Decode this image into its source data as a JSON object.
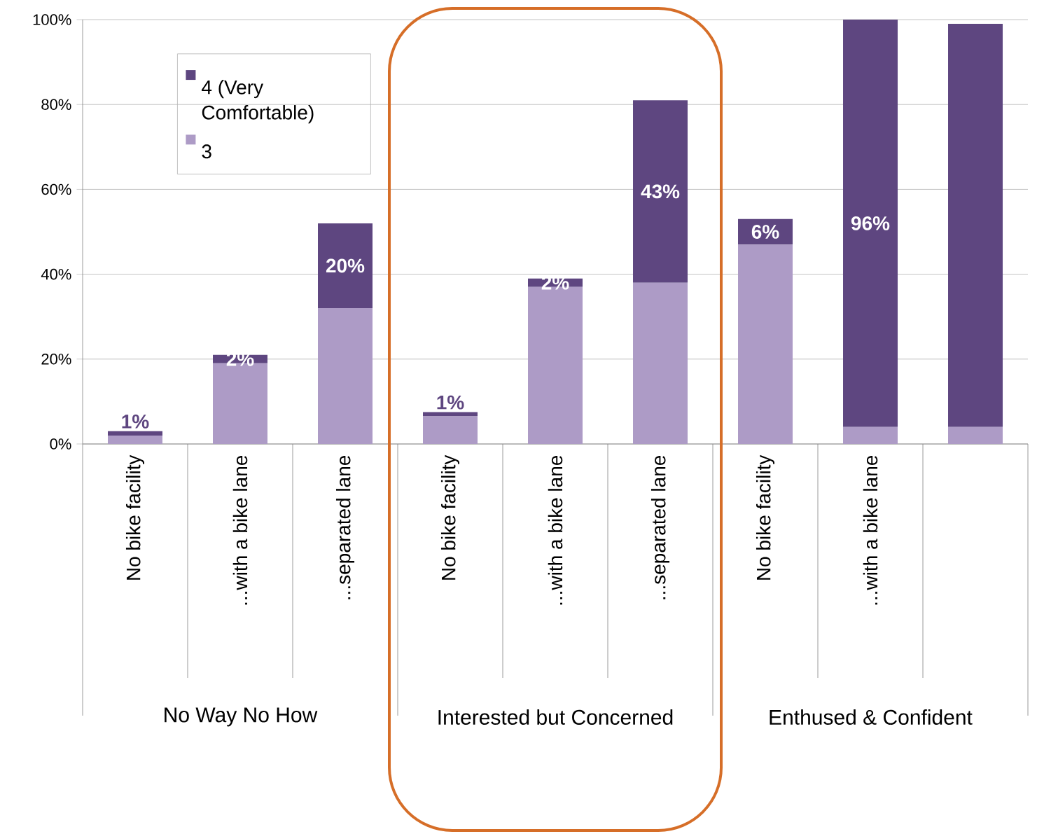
{
  "chart_data": {
    "type": "bar",
    "stacked": true,
    "categories": [
      "No bike facility",
      "...with a bike lane",
      "...separated lane",
      "No bike facility",
      "...with a bike lane",
      "...separated lane",
      "No bike facility",
      "...with a bike lane",
      null
    ],
    "series": [
      {
        "name": "3",
        "color": "#ad9bc6",
        "values": [
          2,
          19,
          32,
          6.5,
          37,
          38,
          47,
          4,
          4
        ]
      },
      {
        "name": "4 (Very Comfortable)",
        "color": "#5e4680",
        "values": [
          1,
          2,
          20,
          1,
          2,
          43,
          6,
          96,
          95
        ],
        "value_labels": [
          "1%",
          "2%",
          "20%",
          "1%",
          "2%",
          "43%",
          "6%",
          "96%",
          null
        ]
      }
    ],
    "ylim": [
      0,
      100
    ],
    "yticks": [
      {
        "value": 0,
        "label": "0%"
      },
      {
        "value": 20,
        "label": "20%"
      },
      {
        "value": 40,
        "label": "40%"
      },
      {
        "value": 60,
        "label": "60%"
      },
      {
        "value": 80,
        "label": "80%"
      },
      {
        "value": 100,
        "label": "100%"
      }
    ],
    "grid": "y",
    "legend": "top left",
    "annotations": [
      "No Way No How",
      "Interested but Concerned",
      "Enthused & Confident"
    ]
  }
}
